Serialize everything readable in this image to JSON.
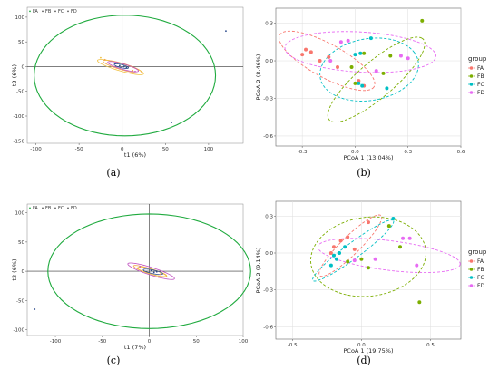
{
  "colors": {
    "FA": "#f8766d",
    "FB": "#7cae00",
    "FC": "#00bfc4",
    "FD": "#e76bf3",
    "pls_outer": "#1faa3e",
    "pls_FA": "#f3a24a",
    "pls_FB": "#2c4a8c",
    "pls_FC": "#f0c040",
    "pls_FD": "#c050c0"
  },
  "chart_data": [
    {
      "id": "a",
      "type": "scatter",
      "caption": "(a)",
      "xlabel": "t1 (6%)",
      "ylabel": "t2 (6%)",
      "xlim": [
        -110,
        140
      ],
      "ylim": [
        -155,
        120
      ],
      "xticks": [
        -100,
        -50,
        0,
        50,
        100
      ],
      "yticks": [
        -150,
        -100,
        -50,
        0,
        50,
        100
      ],
      "legend": [
        "FA",
        "FB",
        "FC",
        "FD"
      ],
      "legend_position": "top-left",
      "ellipses": [
        {
          "group": "all",
          "cx": 3,
          "cy": -18,
          "rx": 105,
          "ry": 122,
          "angle": 0
        },
        {
          "group": "FA",
          "cx": 0,
          "cy": 0,
          "rx": 25,
          "ry": 6,
          "angle": -28
        },
        {
          "group": "FC",
          "cx": -2,
          "cy": -1,
          "rx": 30,
          "ry": 7,
          "angle": -28
        },
        {
          "group": "FD",
          "cx": 1,
          "cy": 0,
          "rx": 20,
          "ry": 5,
          "angle": -28
        },
        {
          "group": "FB",
          "cx": -1,
          "cy": 1,
          "rx": 9,
          "ry": 3,
          "angle": -25
        }
      ],
      "points": [
        {
          "group": "FB",
          "x": 120,
          "y": 72
        },
        {
          "group": "FB",
          "x": 57,
          "y": -113
        },
        {
          "group": "FB",
          "x": -8,
          "y": 6
        },
        {
          "group": "FB",
          "x": -3,
          "y": 2
        },
        {
          "group": "FB",
          "x": 2,
          "y": 0
        },
        {
          "group": "FB",
          "x": 5,
          "y": -2
        },
        {
          "group": "FA",
          "x": -20,
          "y": 14
        },
        {
          "group": "FA",
          "x": 12,
          "y": -8
        },
        {
          "group": "FC",
          "x": -25,
          "y": 18
        },
        {
          "group": "FD",
          "x": 15,
          "y": -10
        }
      ]
    },
    {
      "id": "b",
      "type": "scatter",
      "caption": "(b)",
      "xlabel": "PCoA 1 (13.04%)",
      "ylabel": "PCoA 2 (8.46%)",
      "xlim": [
        -0.45,
        0.6
      ],
      "ylim": [
        -0.68,
        0.42
      ],
      "xticks": [
        -0.3,
        0.0,
        0.3,
        0.6
      ],
      "yticks": [
        -0.6,
        -0.3,
        0.0,
        0.3
      ],
      "tick_labels_x": [
        "-0.3",
        "0.0",
        "0.3",
        "0.6"
      ],
      "tick_labels_y": [
        "-0.6",
        "-0.3",
        "0.0",
        "0.3"
      ],
      "legend_title": "group",
      "legend": [
        "FA",
        "FB",
        "FC",
        "FD"
      ],
      "legend_position": "right",
      "ellipses": [
        {
          "group": "FA",
          "cx": -0.16,
          "cy": 0.0,
          "rx": 0.34,
          "ry": 0.12,
          "angle": -40
        },
        {
          "group": "FB",
          "cx": 0.12,
          "cy": -0.15,
          "rx": 0.42,
          "ry": 0.12,
          "angle": 52
        },
        {
          "group": "FC",
          "cx": 0.08,
          "cy": -0.07,
          "rx": 0.29,
          "ry": 0.24,
          "angle": 28
        },
        {
          "group": "FD",
          "cx": 0.03,
          "cy": 0.07,
          "rx": 0.43,
          "ry": 0.16,
          "angle": -5
        }
      ],
      "points": [
        {
          "group": "FA",
          "x": -0.28,
          "y": 0.09
        },
        {
          "group": "FA",
          "x": -0.25,
          "y": 0.07
        },
        {
          "group": "FA",
          "x": -0.2,
          "y": 0.0
        },
        {
          "group": "FA",
          "x": -0.15,
          "y": 0.03
        },
        {
          "group": "FA",
          "x": -0.1,
          "y": -0.05
        },
        {
          "group": "FA",
          "x": 0.02,
          "y": -0.16
        },
        {
          "group": "FA",
          "x": 0.05,
          "y": -0.2
        },
        {
          "group": "FA",
          "x": -0.3,
          "y": 0.05
        },
        {
          "group": "FB",
          "x": 0.38,
          "y": 0.32
        },
        {
          "group": "FB",
          "x": 0.2,
          "y": 0.04
        },
        {
          "group": "FB",
          "x": 0.05,
          "y": 0.06
        },
        {
          "group": "FB",
          "x": 0.0,
          "y": -0.18
        },
        {
          "group": "FB",
          "x": 0.16,
          "y": -0.1
        },
        {
          "group": "FB",
          "x": -0.02,
          "y": -0.05
        },
        {
          "group": "FC",
          "x": 0.09,
          "y": 0.18
        },
        {
          "group": "FC",
          "x": 0.0,
          "y": 0.05
        },
        {
          "group": "FC",
          "x": 0.02,
          "y": -0.18
        },
        {
          "group": "FC",
          "x": 0.04,
          "y": -0.2
        },
        {
          "group": "FC",
          "x": 0.18,
          "y": -0.22
        },
        {
          "group": "FC",
          "x": 0.03,
          "y": 0.06
        },
        {
          "group": "FD",
          "x": -0.08,
          "y": 0.15
        },
        {
          "group": "FD",
          "x": -0.04,
          "y": 0.16
        },
        {
          "group": "FD",
          "x": 0.26,
          "y": 0.04
        },
        {
          "group": "FD",
          "x": 0.3,
          "y": 0.02
        },
        {
          "group": "FD",
          "x": -0.14,
          "y": 0.0
        },
        {
          "group": "FD",
          "x": 0.12,
          "y": -0.08
        }
      ]
    },
    {
      "id": "c",
      "type": "scatter",
      "caption": "(c)",
      "xlabel": "t1 (7%)",
      "ylabel": "t2 (6%)",
      "xlim": [
        -130,
        100
      ],
      "ylim": [
        -110,
        115
      ],
      "xticks": [
        -100,
        -50,
        0,
        50,
        100
      ],
      "yticks": [
        -100,
        -50,
        0,
        50,
        100
      ],
      "legend": [
        "FA",
        "FB",
        "FC",
        "FD"
      ],
      "legend_position": "top-left",
      "ellipses": [
        {
          "group": "all",
          "cx": 0,
          "cy": 0,
          "rx": 108,
          "ry": 98,
          "angle": 0
        },
        {
          "group": "FD",
          "cx": 2,
          "cy": 0,
          "rx": 28,
          "ry": 6,
          "angle": -28
        },
        {
          "group": "FA",
          "cx": 1,
          "cy": 0,
          "rx": 20,
          "ry": 4,
          "angle": -28
        },
        {
          "group": "FC",
          "cx": 3,
          "cy": -1,
          "rx": 17,
          "ry": 4,
          "angle": -25
        },
        {
          "group": "FB",
          "cx": 4,
          "cy": -1,
          "rx": 11,
          "ry": 3,
          "angle": -20
        }
      ],
      "points": [
        {
          "group": "FB",
          "x": -122,
          "y": -65
        },
        {
          "group": "FB",
          "x": 5,
          "y": -2
        },
        {
          "group": "FB",
          "x": 8,
          "y": -1
        },
        {
          "group": "FB",
          "x": 2,
          "y": 1
        },
        {
          "group": "FD",
          "x": 10,
          "y": -10
        },
        {
          "group": "FD",
          "x": -10,
          "y": 8
        },
        {
          "group": "FA",
          "x": 12,
          "y": -5
        }
      ]
    },
    {
      "id": "d",
      "type": "scatter",
      "caption": "(d)",
      "xlabel": "PCoA 1 (19.75%)",
      "ylabel": "PCoA 2 (9.14%)",
      "xlim": [
        -0.62,
        0.72
      ],
      "ylim": [
        -0.7,
        0.42
      ],
      "xticks": [
        -0.5,
        0.0,
        0.5
      ],
      "yticks": [
        -0.6,
        -0.3,
        0.0,
        0.3
      ],
      "tick_labels_x": [
        "-0.5",
        "0.0",
        "0.5"
      ],
      "tick_labels_y": [
        "-0.6",
        "-0.3",
        "0.0",
        "0.3"
      ],
      "legend_title": "group",
      "legend": [
        "FA",
        "FB",
        "FC",
        "FD"
      ],
      "legend_position": "right",
      "ellipses": [
        {
          "group": "FA",
          "cx": -0.08,
          "cy": 0.06,
          "rx": 0.33,
          "ry": 0.07,
          "angle": 48
        },
        {
          "group": "FB",
          "cx": 0.05,
          "cy": -0.03,
          "rx": 0.42,
          "ry": 0.32,
          "angle": 10
        },
        {
          "group": "FC",
          "cx": -0.06,
          "cy": 0.02,
          "rx": 0.38,
          "ry": 0.06,
          "angle": 40
        },
        {
          "group": "FD",
          "cx": 0.2,
          "cy": -0.02,
          "rx": 0.52,
          "ry": 0.12,
          "angle": -8
        }
      ],
      "points": [
        {
          "group": "FA",
          "x": -0.2,
          "y": 0.05
        },
        {
          "group": "FA",
          "x": -0.15,
          "y": 0.1
        },
        {
          "group": "FA",
          "x": -0.1,
          "y": 0.13
        },
        {
          "group": "FA",
          "x": 0.05,
          "y": 0.25
        },
        {
          "group": "FA",
          "x": -0.22,
          "y": 0.0
        },
        {
          "group": "FA",
          "x": -0.05,
          "y": 0.03
        },
        {
          "group": "FB",
          "x": 0.2,
          "y": 0.22
        },
        {
          "group": "FB",
          "x": 0.28,
          "y": 0.05
        },
        {
          "group": "FB",
          "x": 0.05,
          "y": -0.12
        },
        {
          "group": "FB",
          "x": 0.0,
          "y": -0.05
        },
        {
          "group": "FB",
          "x": 0.42,
          "y": -0.4
        },
        {
          "group": "FB",
          "x": -0.1,
          "y": -0.07
        },
        {
          "group": "FC",
          "x": -0.2,
          "y": -0.02
        },
        {
          "group": "FC",
          "x": -0.18,
          "y": -0.05
        },
        {
          "group": "FC",
          "x": -0.12,
          "y": 0.05
        },
        {
          "group": "FC",
          "x": 0.23,
          "y": 0.28
        },
        {
          "group": "FC",
          "x": -0.22,
          "y": -0.1
        },
        {
          "group": "FC",
          "x": -0.16,
          "y": 0.0
        },
        {
          "group": "FD",
          "x": 0.35,
          "y": 0.12
        },
        {
          "group": "FD",
          "x": 0.3,
          "y": 0.12
        },
        {
          "group": "FD",
          "x": 0.4,
          "y": -0.1
        },
        {
          "group": "FD",
          "x": 0.1,
          "y": -0.05
        },
        {
          "group": "FD",
          "x": -0.05,
          "y": -0.06
        }
      ]
    }
  ]
}
